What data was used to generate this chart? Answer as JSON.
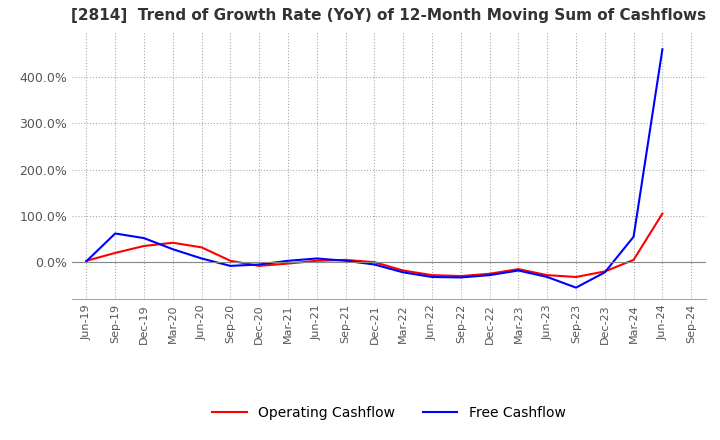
{
  "title": "[2814]  Trend of Growth Rate (YoY) of 12-Month Moving Sum of Cashflows",
  "title_fontsize": 11,
  "title_color": "#333333",
  "background_color": "#ffffff",
  "grid_color": "#aaaaaa",
  "legend": [
    "Operating Cashflow",
    "Free Cashflow"
  ],
  "legend_colors": [
    "#ff0000",
    "#0000ff"
  ],
  "x_labels": [
    "Jun-19",
    "Sep-19",
    "Dec-19",
    "Mar-20",
    "Jun-20",
    "Sep-20",
    "Dec-20",
    "Mar-21",
    "Jun-21",
    "Sep-21",
    "Dec-21",
    "Mar-22",
    "Jun-22",
    "Sep-22",
    "Dec-22",
    "Mar-23",
    "Jun-23",
    "Sep-23",
    "Dec-23",
    "Mar-24",
    "Jun-24",
    "Sep-24"
  ],
  "operating_cashflow": [
    3.0,
    20.0,
    35.0,
    42.0,
    32.0,
    3.0,
    -8.0,
    -3.0,
    3.0,
    5.0,
    0.0,
    -18.0,
    -28.0,
    -30.0,
    -25.0,
    -15.0,
    -28.0,
    -32.0,
    -20.0,
    5.0,
    105.0,
    null
  ],
  "free_cashflow": [
    2.0,
    62.0,
    52.0,
    28.0,
    8.0,
    -8.0,
    -5.0,
    3.0,
    8.0,
    3.0,
    -5.0,
    -22.0,
    -32.0,
    -33.0,
    -28.0,
    -18.0,
    -32.0,
    -55.0,
    -22.0,
    55.0,
    460.0,
    null
  ],
  "ylim": [
    -80,
    500
  ],
  "yticks": [
    0.0,
    100.0,
    200.0,
    300.0,
    400.0
  ],
  "line_width": 1.5
}
